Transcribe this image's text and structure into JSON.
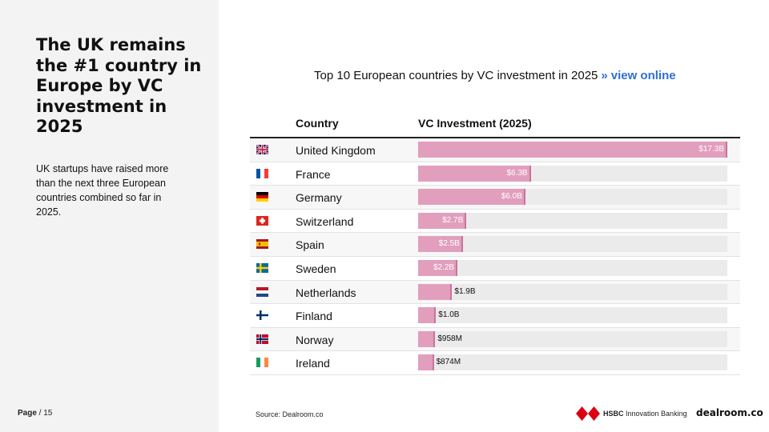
{
  "headline": "The UK remains the #1 country in Europe by VC investment in 2025",
  "subtext": "UK startups have raised more than the next three European countries combined so far in 2025.",
  "page": {
    "label": "Page",
    "separator": " / ",
    "number": "15"
  },
  "chart_title": {
    "text": "Top 10 European countries by VC investment in 2025",
    "arrow": "»",
    "link": "view online"
  },
  "columns": {
    "country": "Country",
    "vc": "VC Investment (2025)"
  },
  "chart_data": {
    "type": "bar",
    "orientation": "horizontal",
    "title": "Top 10 European countries by VC investment in 2025",
    "columns": [
      "Country",
      "VC Investment (2025)"
    ],
    "categories": [
      "United Kingdom",
      "France",
      "Germany",
      "Switzerland",
      "Spain",
      "Sweden",
      "Netherlands",
      "Finland",
      "Norway",
      "Ireland"
    ],
    "values_usd_billion": [
      17.3,
      6.3,
      6.0,
      2.7,
      2.5,
      2.2,
      1.9,
      1.0,
      0.958,
      0.874
    ],
    "labels": [
      "$17.3B",
      "$6.3B",
      "$6.0B",
      "$2.7B",
      "$2.5B",
      "$2.2B",
      "$1.9B",
      "$1.0B",
      "$958M",
      "$874M"
    ],
    "xlim": [
      0,
      17.3
    ],
    "bar_color": "#e19ebd",
    "track_color": "#ebebeb"
  },
  "flags": [
    "gb-flag-icon",
    "fr-flag-icon",
    "de-flag-icon",
    "ch-flag-icon",
    "es-flag-icon",
    "se-flag-icon",
    "nl-flag-icon",
    "fi-flag-icon",
    "no-flag-icon",
    "ie-flag-icon"
  ],
  "source": "Source:  Dealroom.co",
  "logos": {
    "hsbc_bold": "HSBC",
    "hsbc_rest": " Innovation Banking",
    "dealroom": "dealroom.co"
  },
  "colors": {
    "link": "#2f6fd0",
    "panel_bg": "#f3f3f3",
    "hsbc_red": "#db0011"
  }
}
